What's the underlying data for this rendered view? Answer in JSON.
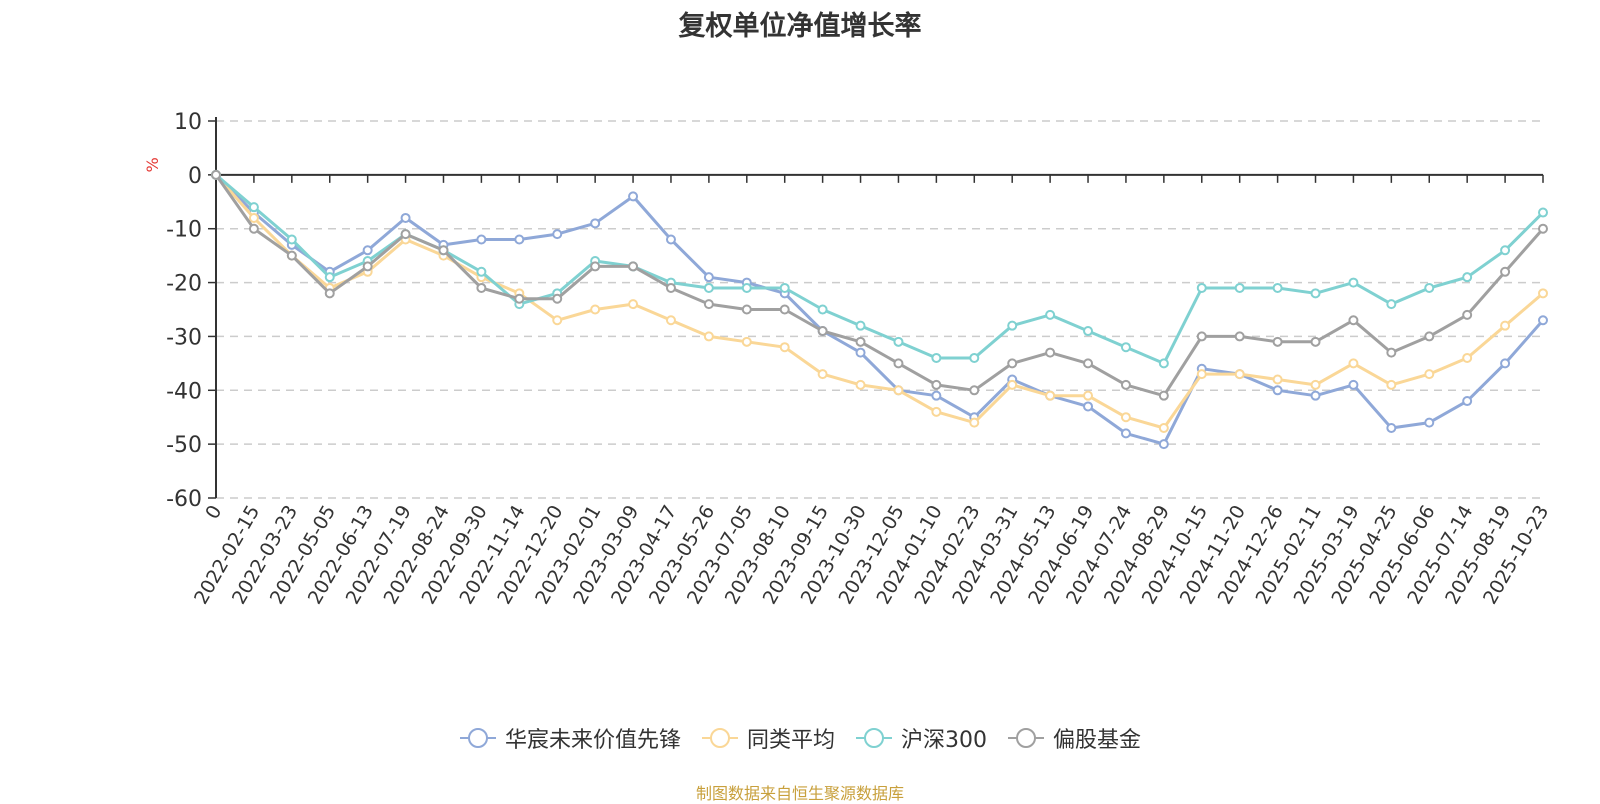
{
  "chart_data": {
    "type": "line",
    "title": "复权单位净值增长率",
    "ylabel": "%",
    "ylim": [
      -60,
      10
    ],
    "yticks": [
      10,
      0,
      -10,
      -20,
      -30,
      -40,
      -50,
      -60
    ],
    "categories": [
      "0",
      "2022-02-15",
      "2022-03-23",
      "2022-05-05",
      "2022-06-13",
      "2022-07-19",
      "2022-08-24",
      "2022-09-30",
      "2022-11-14",
      "2022-12-20",
      "2023-02-01",
      "2023-03-09",
      "2023-04-17",
      "2023-05-26",
      "2023-07-05",
      "2023-08-10",
      "2023-09-15",
      "2023-10-30",
      "2023-12-05",
      "2024-01-10",
      "2024-02-23",
      "2024-03-31",
      "2024-05-13",
      "2024-06-19",
      "2024-07-24",
      "2024-08-29",
      "2024-10-15",
      "2024-11-20",
      "2024-12-26",
      "2025-02-11",
      "2025-03-19",
      "2025-04-25",
      "2025-06-06",
      "2025-07-14",
      "2025-08-19",
      "2025-10-23"
    ],
    "series": [
      {
        "name": "华宸未来价值先锋",
        "color": "#8fa8d8",
        "values": [
          0,
          -7,
          -13,
          -18,
          -14,
          -8,
          -13,
          -12,
          -12,
          -11,
          -9,
          -4,
          -12,
          -19,
          -20,
          -22,
          -29,
          -33,
          -40,
          -41,
          -45,
          -38,
          -41,
          -43,
          -48,
          -50,
          -36,
          -37,
          -40,
          -41,
          -39,
          -47,
          -46,
          -42,
          -35,
          -27
        ]
      },
      {
        "name": "同类平均",
        "color": "#fad797",
        "values": [
          0,
          -8,
          -15,
          -21,
          -18,
          -12,
          -15,
          -19,
          -22,
          -27,
          -25,
          -24,
          -27,
          -30,
          -31,
          -32,
          -37,
          -39,
          -40,
          -44,
          -46,
          -39,
          -41,
          -41,
          -45,
          -47,
          -37,
          -37,
          -38,
          -39,
          -35,
          -39,
          -37,
          -34,
          -28,
          -22
        ]
      },
      {
        "name": "沪深300",
        "color": "#7fd1d1",
        "values": [
          0,
          -6,
          -12,
          -19,
          -16,
          -11,
          -14,
          -18,
          -24,
          -22,
          -16,
          -17,
          -20,
          -21,
          -21,
          -21,
          -25,
          -28,
          -31,
          -34,
          -34,
          -28,
          -26,
          -29,
          -32,
          -35,
          -21,
          -21,
          -21,
          -22,
          -20,
          -24,
          -21,
          -19,
          -14,
          -7
        ]
      },
      {
        "name": "偏股基金",
        "color": "#a0a0a0",
        "values": [
          0,
          -10,
          -15,
          -22,
          -17,
          -11,
          -14,
          -21,
          -23,
          -23,
          -17,
          -17,
          -21,
          -24,
          -25,
          -25,
          -29,
          -31,
          -35,
          -39,
          -40,
          -35,
          -33,
          -35,
          -39,
          -41,
          -30,
          -30,
          -31,
          -31,
          -27,
          -33,
          -30,
          -26,
          -18,
          -10
        ]
      }
    ]
  },
  "source_note": "制图数据来自恒生聚源数据库"
}
